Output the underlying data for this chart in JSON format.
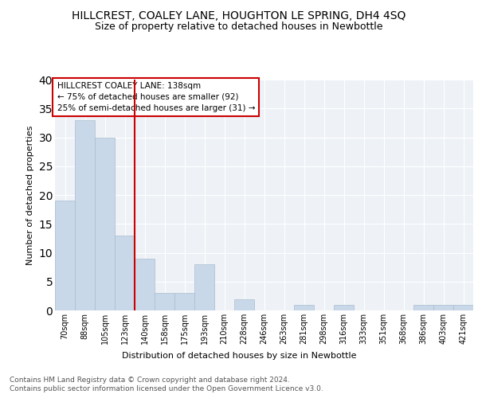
{
  "title": "HILLCREST, COALEY LANE, HOUGHTON LE SPRING, DH4 4SQ",
  "subtitle": "Size of property relative to detached houses in Newbottle",
  "xlabel": "Distribution of detached houses by size in Newbottle",
  "ylabel": "Number of detached properties",
  "footnote1": "Contains HM Land Registry data © Crown copyright and database right 2024.",
  "footnote2": "Contains public sector information licensed under the Open Government Licence v3.0.",
  "annotation_line1": "HILLCREST COALEY LANE: 138sqm",
  "annotation_line2": "← 75% of detached houses are smaller (92)",
  "annotation_line3": "25% of semi-detached houses are larger (31) →",
  "bar_color": "#c8d8e8",
  "bar_edge_color": "#aabcce",
  "vline_color": "#cc0000",
  "vline_x_index": 3.5,
  "categories": [
    "70sqm",
    "88sqm",
    "105sqm",
    "123sqm",
    "140sqm",
    "158sqm",
    "175sqm",
    "193sqm",
    "210sqm",
    "228sqm",
    "246sqm",
    "263sqm",
    "281sqm",
    "298sqm",
    "316sqm",
    "333sqm",
    "351sqm",
    "368sqm",
    "386sqm",
    "403sqm",
    "421sqm"
  ],
  "values": [
    19,
    33,
    30,
    13,
    9,
    3,
    3,
    8,
    0,
    2,
    0,
    0,
    1,
    0,
    1,
    0,
    0,
    0,
    1,
    1,
    1
  ],
  "ylim": [
    0,
    40
  ],
  "yticks": [
    0,
    5,
    10,
    15,
    20,
    25,
    30,
    35,
    40
  ],
  "bg_color": "#eef2f7",
  "grid_color": "#ffffff",
  "title_fontsize": 10,
  "subtitle_fontsize": 9,
  "axis_label_fontsize": 8,
  "tick_fontsize": 7,
  "annotation_fontsize": 7.5,
  "footnote_fontsize": 6.5
}
